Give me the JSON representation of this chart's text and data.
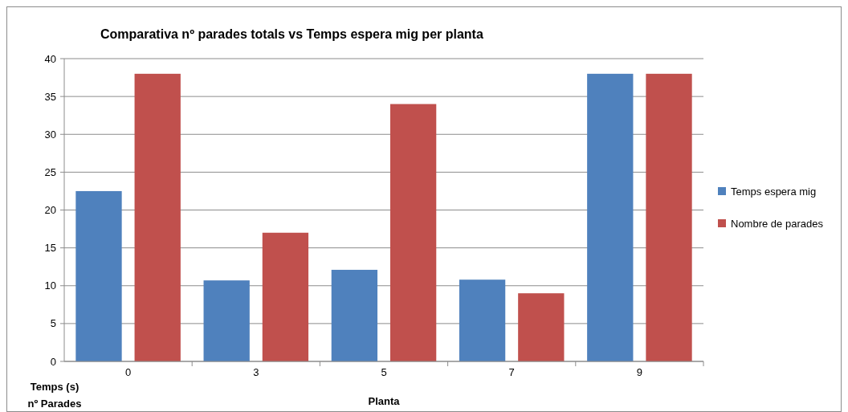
{
  "chart_data": {
    "type": "bar",
    "title": "Comparativa nº parades totals vs Temps espera mig per planta",
    "xlabel": "Planta",
    "ylabel": "Temps (s)\nnº Parades",
    "categories": [
      "0",
      "3",
      "5",
      "7",
      "9"
    ],
    "series": [
      {
        "name": "Temps espera mig",
        "color": "#4f81bd",
        "values": [
          22.5,
          10.7,
          12.1,
          10.8,
          38
        ]
      },
      {
        "name": "Nombre de parades",
        "color": "#c0504d",
        "values": [
          38,
          17,
          34,
          9,
          38
        ]
      }
    ],
    "ylim": [
      0,
      40
    ],
    "yticks": [
      0,
      5,
      10,
      15,
      20,
      25,
      30,
      35,
      40
    ],
    "grid": "y",
    "legend": "right"
  }
}
